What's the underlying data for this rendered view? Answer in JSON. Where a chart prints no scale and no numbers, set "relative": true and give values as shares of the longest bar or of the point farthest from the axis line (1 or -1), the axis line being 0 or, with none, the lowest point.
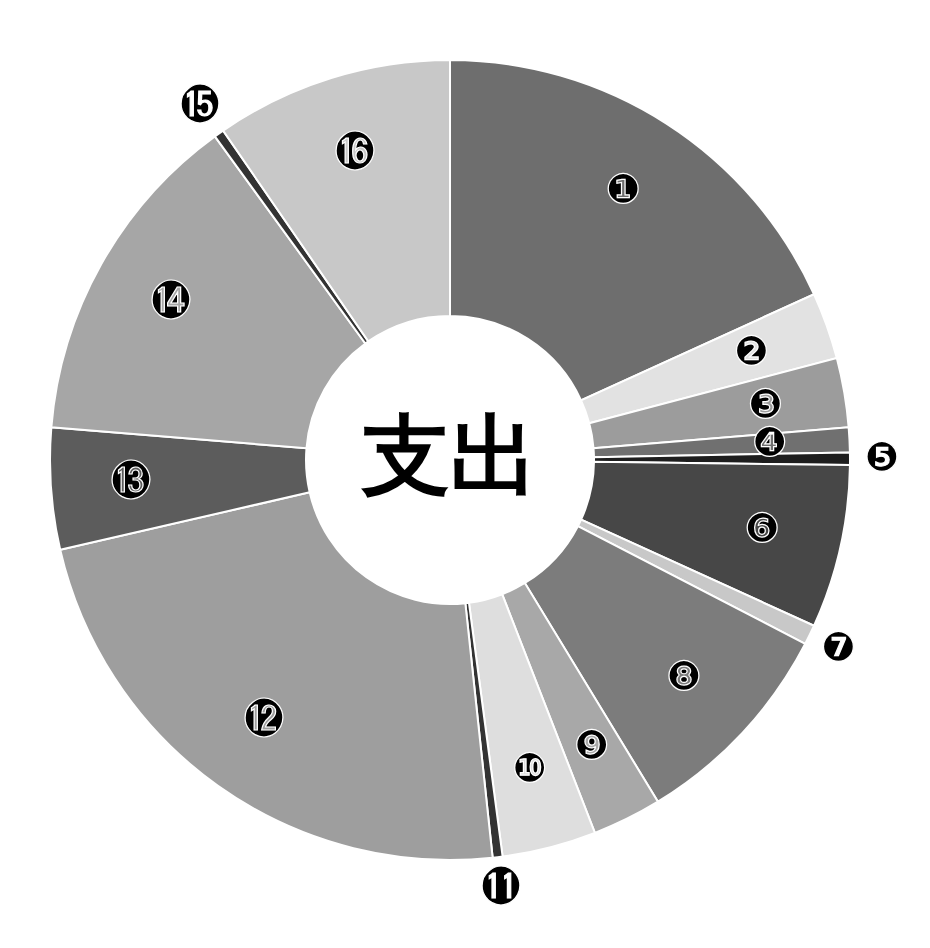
{
  "chart_data": {
    "type": "donut",
    "title": "支出",
    "relative": true,
    "categories": [
      "❶",
      "❷",
      "❸",
      "❹",
      "❺",
      "❻",
      "❼",
      "❽",
      "❾",
      "❿",
      "⓫",
      "⓬",
      "⓭",
      "⓮",
      "⓯",
      "⓰"
    ],
    "values": [
      18.2,
      2.7,
      2.8,
      1.0,
      0.5,
      6.6,
      0.8,
      8.7,
      2.8,
      3.8,
      0.4,
      23.1,
      4.9,
      13.7,
      0.4,
      9.6
    ],
    "colors": [
      "#6e6e6e",
      "#e2e2e2",
      "#9c9c9c",
      "#707070",
      "#1e1e1e",
      "#474747",
      "#c8c8c8",
      "#7c7c7c",
      "#a8a8a8",
      "#dedede",
      "#333333",
      "#9e9e9e",
      "#5c5c5c",
      "#a6a6a6",
      "#333333",
      "#c8c8c8"
    ],
    "legend": false
  }
}
